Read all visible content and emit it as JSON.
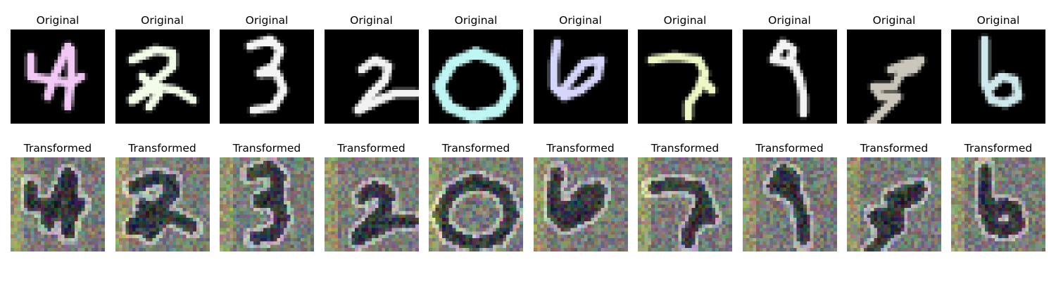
{
  "top_row": {
    "panel_title": "Original",
    "panels": [
      {
        "digit": "4",
        "stroke_color": "#f2c8f4",
        "background": "#000000"
      },
      {
        "digit": "2",
        "stroke_color": "#f3fbe9",
        "background": "#000000"
      },
      {
        "digit": "3",
        "stroke_color": "#f4f4f4",
        "background": "#000000"
      },
      {
        "digit": "2",
        "stroke_color": "#f2f2f2",
        "background": "#000000"
      },
      {
        "digit": "0",
        "stroke_color": "#bff6f3",
        "background": "#000000"
      },
      {
        "digit": "6",
        "stroke_color": "#d6d6fb",
        "background": "#000000"
      },
      {
        "digit": "7",
        "stroke_color": "#edf8c6",
        "background": "#000000"
      },
      {
        "digit": "9",
        "stroke_color": "#f4f4f4",
        "background": "#000000"
      },
      {
        "digit": "9",
        "stroke_color": "#cbc6bc",
        "background": "#000000"
      },
      {
        "digit": "6",
        "stroke_color": "#cfe8ec",
        "background": "#000000"
      }
    ]
  },
  "bottom_row": {
    "panel_title": "Transformed",
    "panels": [
      {
        "digit": "4"
      },
      {
        "digit": "2"
      },
      {
        "digit": "3"
      },
      {
        "digit": "2"
      },
      {
        "digit": "0"
      },
      {
        "digit": "6"
      },
      {
        "digit": "7"
      },
      {
        "digit": "9"
      },
      {
        "digit": "9"
      },
      {
        "digit": "6"
      }
    ]
  }
}
